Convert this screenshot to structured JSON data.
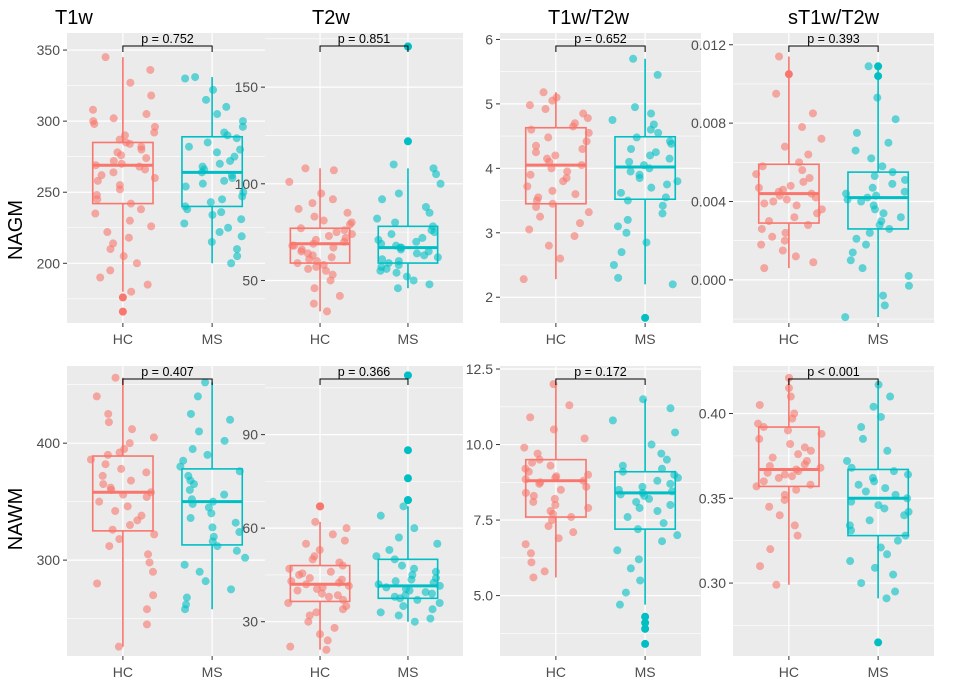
{
  "figure": {
    "column_titles": [
      "T1w",
      "T2w",
      "T1w/T2w",
      "sT1w/T2w"
    ],
    "row_titles": [
      "NAGM",
      "NAWM"
    ]
  },
  "colors": {
    "HC": "#F8766D",
    "MS": "#00BFC4",
    "panel_bg": "#EBEBEB",
    "grid": "#FFFFFF"
  },
  "chart_data": [
    {
      "type": "box",
      "row": "NAGM",
      "column": "T1w",
      "title": "T1w",
      "categories": [
        "HC",
        "MS"
      ],
      "ylim": [
        158,
        362
      ],
      "yticks": [
        200,
        250,
        300,
        350
      ],
      "ytick_labels": [
        "200",
        "250",
        "300",
        "350"
      ],
      "pvalue": "p = 0.752",
      "series": [
        {
          "name": "HC",
          "q1": 242,
          "median": 269,
          "q3": 285,
          "whisker_low": 180,
          "whisker_high": 345,
          "outliers": [
            176,
            166
          ],
          "points": [
            345,
            336,
            327,
            318,
            308,
            305,
            302,
            300,
            298,
            296,
            292,
            290,
            287,
            285,
            284,
            282,
            280,
            278,
            276,
            274,
            272,
            270,
            269,
            268,
            266,
            264,
            262,
            260,
            258,
            255,
            252,
            248,
            245,
            242,
            238,
            235,
            230,
            226,
            222,
            218,
            214,
            210,
            205,
            200,
            195,
            190,
            185,
            180
          ]
        },
        {
          "name": "MS",
          "q1": 240,
          "median": 264,
          "q3": 289,
          "whisker_low": 200,
          "whisker_high": 331,
          "outliers": [],
          "points": [
            331,
            330,
            322,
            315,
            310,
            305,
            300,
            296,
            292,
            290,
            288,
            285,
            282,
            280,
            278,
            275,
            272,
            270,
            268,
            266,
            264,
            262,
            260,
            258,
            256,
            254,
            250,
            247,
            245,
            243,
            240,
            238,
            236,
            234,
            231,
            228,
            225,
            222,
            219,
            215,
            210,
            205,
            200
          ]
        }
      ]
    },
    {
      "type": "box",
      "row": "NAGM",
      "column": "T2w",
      "title": "T2w",
      "categories": [
        "HC",
        "MS"
      ],
      "ylim": [
        28,
        178
      ],
      "yticks": [
        50,
        100,
        150
      ],
      "ytick_labels": [
        "50",
        "100",
        "150"
      ],
      "pvalue": "p = 0.851",
      "series": [
        {
          "name": "HC",
          "q1": 59,
          "median": 69,
          "q3": 77,
          "whisker_low": 34,
          "whisker_high": 108,
          "outliers": [],
          "points": [
            108,
            107,
            101,
            95,
            92,
            90,
            87,
            85,
            83,
            81,
            80,
            79,
            77,
            76,
            75,
            74,
            73,
            72,
            71,
            70,
            69,
            68,
            68,
            67,
            66,
            65,
            64,
            63,
            62,
            61,
            60,
            59,
            58,
            57,
            56,
            55,
            53,
            50,
            46,
            42,
            38,
            34
          ]
        },
        {
          "name": "MS",
          "q1": 59,
          "median": 67,
          "q3": 78,
          "whisker_low": 46,
          "whisker_high": 108,
          "outliers": [
            171,
            171,
            122
          ],
          "points": [
            110,
            108,
            105,
            100,
            95,
            92,
            88,
            85,
            82,
            80,
            78,
            76,
            75,
            74,
            72,
            71,
            70,
            69,
            68,
            67,
            67,
            66,
            65,
            64,
            63,
            62,
            61,
            60,
            59,
            58,
            57,
            56,
            55,
            54,
            52,
            50,
            48,
            46
          ]
        }
      ]
    },
    {
      "type": "box",
      "row": "NAGM",
      "column": "T1w/T2w",
      "title": "T1w/T2w",
      "categories": [
        "HC",
        "MS"
      ],
      "ylim": [
        1.6,
        6.1
      ],
      "yticks": [
        2,
        3,
        4,
        5,
        6
      ],
      "ytick_labels": [
        "2",
        "3",
        "4",
        "5",
        "6"
      ],
      "pvalue": "p = 0.652",
      "series": [
        {
          "name": "HC",
          "q1": 3.45,
          "median": 4.05,
          "q3": 4.63,
          "whisker_low": 2.28,
          "whisker_high": 5.18,
          "outliers": [],
          "points": [
            5.18,
            5.1,
            5.05,
            4.98,
            4.92,
            4.85,
            4.78,
            4.7,
            4.65,
            4.6,
            4.55,
            4.48,
            4.42,
            4.35,
            4.3,
            4.25,
            4.2,
            4.15,
            4.1,
            4.05,
            4.0,
            3.95,
            3.9,
            3.85,
            3.8,
            3.72,
            3.65,
            3.6,
            3.55,
            3.5,
            3.45,
            3.4,
            3.32,
            3.25,
            3.15,
            3.05,
            2.95,
            2.8,
            2.6,
            2.28
          ]
        },
        {
          "name": "MS",
          "q1": 3.52,
          "median": 4.02,
          "q3": 4.49,
          "whisker_low": 2.2,
          "whisker_high": 5.7,
          "outliers": [
            1.68
          ],
          "points": [
            5.7,
            5.45,
            4.95,
            4.85,
            4.75,
            4.68,
            4.6,
            4.55,
            4.48,
            4.42,
            4.38,
            4.3,
            4.25,
            4.2,
            4.15,
            4.1,
            4.05,
            4.0,
            3.95,
            3.9,
            3.85,
            3.8,
            3.75,
            3.7,
            3.62,
            3.55,
            3.5,
            3.42,
            3.3,
            3.2,
            3.1,
            3.0,
            2.85,
            2.7,
            2.5,
            2.3,
            2.2
          ]
        }
      ]
    },
    {
      "type": "box",
      "row": "NAGM",
      "column": "sT1w/T2w",
      "title": "sT1w/T2w",
      "categories": [
        "HC",
        "MS"
      ],
      "ylim": [
        -0.0022,
        0.0126
      ],
      "yticks": [
        0.0,
        0.004,
        0.008,
        0.012
      ],
      "ytick_labels": [
        "0.000",
        "0.004",
        "0.008",
        "0.012"
      ],
      "pvalue": "p = 0.393",
      "series": [
        {
          "name": "HC",
          "q1": 0.0029,
          "median": 0.0044,
          "q3": 0.0059,
          "whisker_low": 0.0006,
          "whisker_high": 0.0114,
          "outliers": [
            0.0105
          ],
          "points": [
            0.0114,
            0.0095,
            0.0085,
            0.0078,
            0.0072,
            0.0068,
            0.0064,
            0.006,
            0.0058,
            0.0056,
            0.0054,
            0.0052,
            0.005,
            0.0048,
            0.0047,
            0.0046,
            0.0045,
            0.0044,
            0.0043,
            0.0042,
            0.0041,
            0.004,
            0.0039,
            0.0038,
            0.0036,
            0.0034,
            0.0032,
            0.003,
            0.0028,
            0.0026,
            0.0024,
            0.0022,
            0.002,
            0.0018,
            0.0015,
            0.0012,
            0.0009,
            0.0006
          ]
        },
        {
          "name": "MS",
          "q1": 0.0026,
          "median": 0.0042,
          "q3": 0.0055,
          "whisker_low": -0.0019,
          "whisker_high": 0.0109,
          "outliers": [
            0.0109,
            0.0104
          ],
          "points": [
            0.0109,
            0.0093,
            0.0082,
            0.0075,
            0.007,
            0.0066,
            0.0062,
            0.0058,
            0.0055,
            0.0053,
            0.0051,
            0.0049,
            0.0047,
            0.0045,
            0.0044,
            0.0043,
            0.0042,
            0.0041,
            0.004,
            0.0038,
            0.0036,
            0.0034,
            0.0032,
            0.003,
            0.0028,
            0.0026,
            0.0024,
            0.0021,
            0.0018,
            0.0014,
            0.001,
            0.0006,
            0.0002,
            -0.0003,
            -0.0008,
            -0.0013,
            -0.0019
          ]
        }
      ]
    },
    {
      "type": "box",
      "row": "NAWM",
      "column": "T1w",
      "title": "T1w",
      "categories": [
        "HC",
        "MS"
      ],
      "ylim": [
        218,
        466
      ],
      "yticks": [
        300,
        400
      ],
      "ytick_labels": [
        "300",
        "400"
      ],
      "pvalue": "p = 0.407",
      "series": [
        {
          "name": "HC",
          "q1": 325,
          "median": 358,
          "q3": 389,
          "whisker_low": 226,
          "whisker_high": 456,
          "outliers": [],
          "points": [
            456,
            440,
            425,
            418,
            412,
            405,
            400,
            395,
            392,
            390,
            386,
            382,
            378,
            375,
            372,
            368,
            365,
            362,
            360,
            358,
            356,
            354,
            350,
            346,
            342,
            338,
            334,
            330,
            326,
            322,
            318,
            312,
            305,
            298,
            290,
            280,
            270,
            258,
            245,
            226
          ]
        },
        {
          "name": "MS",
          "q1": 313,
          "median": 350,
          "q3": 378,
          "whisker_low": 258,
          "whisker_high": 452,
          "outliers": [],
          "points": [
            452,
            440,
            425,
            420,
            410,
            402,
            395,
            390,
            385,
            380,
            376,
            372,
            368,
            365,
            360,
            356,
            352,
            350,
            348,
            345,
            340,
            336,
            332,
            328,
            324,
            320,
            316,
            312,
            308,
            302,
            296,
            290,
            282,
            275,
            268,
            262,
            258
          ]
        }
      ]
    },
    {
      "type": "box",
      "row": "NAWM",
      "column": "T2w",
      "title": "T2w",
      "categories": [
        "HC",
        "MS"
      ],
      "ylim": [
        19,
        112
      ],
      "yticks": [
        30,
        60,
        90
      ],
      "ytick_labels": [
        "30",
        "60",
        "90"
      ],
      "pvalue": "p = 0.366",
      "series": [
        {
          "name": "HC",
          "q1": 36.5,
          "median": 42,
          "q3": 48,
          "whisker_low": 21,
          "whisker_high": 62,
          "outliers": [
            67,
            67
          ],
          "points": [
            62,
            60,
            58,
            56,
            55,
            53,
            51,
            50,
            49,
            48,
            47,
            46,
            45.5,
            45,
            44,
            43.5,
            43,
            42.5,
            42,
            41.5,
            41,
            40.5,
            40,
            39,
            38.5,
            38,
            37,
            36,
            35,
            34,
            33,
            32,
            30,
            28,
            26,
            24,
            22,
            21
          ]
        },
        {
          "name": "MS",
          "q1": 37.5,
          "median": 41.5,
          "q3": 50,
          "whisker_low": 30,
          "whisker_high": 67,
          "outliers": [
            109,
            85,
            76,
            69,
            69
          ],
          "points": [
            67,
            64,
            60,
            57,
            55,
            53,
            51,
            50,
            48,
            47,
            46,
            45,
            44,
            43.5,
            43,
            42.5,
            42,
            41.5,
            41,
            40.5,
            40,
            39.5,
            39,
            38.5,
            38,
            37.5,
            37,
            36,
            35,
            34,
            33,
            32,
            31,
            30
          ]
        }
      ]
    },
    {
      "type": "box",
      "row": "NAWM",
      "column": "T1w/T2w",
      "title": "T1w/T2w",
      "categories": [
        "HC",
        "MS"
      ],
      "ylim": [
        3.0,
        12.6
      ],
      "yticks": [
        5.0,
        7.5,
        10.0,
        12.5
      ],
      "ytick_labels": [
        "5.0",
        "7.5",
        "10.0",
        "12.5"
      ],
      "pvalue": "p = 0.172",
      "series": [
        {
          "name": "HC",
          "q1": 7.6,
          "median": 8.8,
          "q3": 9.5,
          "whisker_low": 5.6,
          "whisker_high": 12.0,
          "outliers": [],
          "points": [
            12.0,
            11.3,
            10.9,
            10.5,
            10.2,
            9.9,
            9.7,
            9.5,
            9.4,
            9.3,
            9.2,
            9.1,
            9.0,
            8.95,
            8.9,
            8.85,
            8.8,
            8.75,
            8.7,
            8.6,
            8.5,
            8.4,
            8.3,
            8.2,
            8.1,
            8.0,
            7.9,
            7.8,
            7.7,
            7.6,
            7.5,
            7.3,
            7.1,
            6.9,
            6.7,
            6.4,
            6.1,
            5.8,
            5.6
          ]
        },
        {
          "name": "MS",
          "q1": 7.2,
          "median": 8.4,
          "q3": 9.1,
          "whisker_low": 4.7,
          "whisker_high": 11.5,
          "outliers": [
            4.3,
            4.1,
            3.9,
            3.4
          ],
          "points": [
            11.5,
            11.2,
            10.8,
            10.4,
            10.0,
            9.7,
            9.5,
            9.3,
            9.2,
            9.1,
            9.0,
            8.9,
            8.8,
            8.7,
            8.6,
            8.5,
            8.45,
            8.4,
            8.35,
            8.3,
            8.2,
            8.1,
            8.0,
            7.9,
            7.8,
            7.6,
            7.4,
            7.2,
            7.0,
            6.8,
            6.5,
            6.2,
            5.9,
            5.5,
            5.1,
            4.7
          ]
        }
      ]
    },
    {
      "type": "box",
      "row": "NAWM",
      "column": "sT1w/T2w",
      "title": "sT1w/T2w",
      "categories": [
        "HC",
        "MS"
      ],
      "ylim": [
        0.257,
        0.428
      ],
      "yticks": [
        0.3,
        0.35,
        0.4
      ],
      "ytick_labels": [
        "0.30",
        "0.35",
        "0.40"
      ],
      "pvalue": "p < 0.001",
      "series": [
        {
          "name": "HC",
          "q1": 0.357,
          "median": 0.367,
          "q3": 0.392,
          "whisker_low": 0.299,
          "whisker_high": 0.421,
          "outliers": [],
          "points": [
            0.421,
            0.415,
            0.41,
            0.405,
            0.4,
            0.397,
            0.394,
            0.392,
            0.39,
            0.388,
            0.385,
            0.382,
            0.38,
            0.378,
            0.376,
            0.374,
            0.372,
            0.37,
            0.369,
            0.368,
            0.367,
            0.366,
            0.365,
            0.364,
            0.363,
            0.362,
            0.36,
            0.358,
            0.357,
            0.355,
            0.352,
            0.349,
            0.345,
            0.34,
            0.334,
            0.328,
            0.32,
            0.31,
            0.299
          ]
        },
        {
          "name": "MS",
          "q1": 0.328,
          "median": 0.35,
          "q3": 0.367,
          "whisker_low": 0.291,
          "whisker_high": 0.417,
          "outliers": [
            0.265
          ],
          "points": [
            0.417,
            0.41,
            0.404,
            0.398,
            0.392,
            0.385,
            0.378,
            0.372,
            0.368,
            0.366,
            0.364,
            0.362,
            0.36,
            0.358,
            0.356,
            0.354,
            0.352,
            0.35,
            0.348,
            0.346,
            0.344,
            0.342,
            0.34,
            0.337,
            0.334,
            0.331,
            0.328,
            0.325,
            0.321,
            0.317,
            0.313,
            0.309,
            0.305,
            0.3,
            0.295,
            0.291
          ]
        }
      ]
    }
  ]
}
